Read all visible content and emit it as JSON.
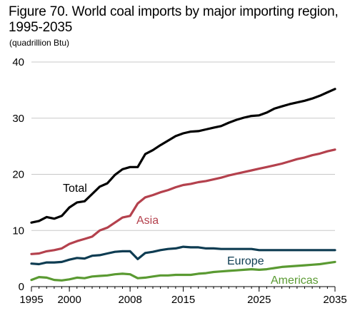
{
  "chart_data": {
    "type": "line",
    "title": "Figure 70. World coal imports by major importing region, 1995-2035",
    "subtitle": "(quadrillion Btu)",
    "xlabel": "",
    "ylabel": "",
    "ylim": [
      0,
      40
    ],
    "xlim": [
      1995,
      2035
    ],
    "y_ticks": [
      "0",
      "10",
      "20",
      "30",
      "40"
    ],
    "x_ticks": [
      {
        "value": 1995,
        "label": "1995"
      },
      {
        "value": 2000,
        "label": "2000"
      },
      {
        "value": 2008,
        "label": "2008"
      },
      {
        "value": 2015,
        "label": "2015"
      },
      {
        "value": 2025,
        "label": "2025"
      },
      {
        "value": 2035,
        "label": "2035"
      }
    ],
    "grid": "horizontal",
    "legend": "inline labels",
    "x": [
      1995,
      1996,
      1997,
      1998,
      1999,
      2000,
      2001,
      2002,
      2003,
      2004,
      2005,
      2006,
      2007,
      2008,
      2009,
      2010,
      2011,
      2012,
      2013,
      2014,
      2015,
      2016,
      2017,
      2018,
      2019,
      2020,
      2021,
      2022,
      2023,
      2024,
      2025,
      2026,
      2027,
      2028,
      2029,
      2030,
      2031,
      2032,
      2033,
      2034,
      2035
    ],
    "series": [
      {
        "name": "Total",
        "color": "#000000",
        "values": [
          11.4,
          11.7,
          12.4,
          12.1,
          12.6,
          14.1,
          15.0,
          15.2,
          16.5,
          17.8,
          18.4,
          19.9,
          20.9,
          21.3,
          21.3,
          23.6,
          24.3,
          25.2,
          26.0,
          26.8,
          27.3,
          27.6,
          27.7,
          28.0,
          28.3,
          28.6,
          29.2,
          29.7,
          30.1,
          30.4,
          30.5,
          31.0,
          31.7,
          32.1,
          32.5,
          32.8,
          33.1,
          33.5,
          34.0,
          34.6,
          35.2
        ]
      },
      {
        "name": "Asia",
        "color": "#b4414d",
        "values": [
          5.8,
          5.9,
          6.3,
          6.5,
          6.8,
          7.6,
          8.1,
          8.5,
          8.9,
          10.0,
          10.5,
          11.4,
          12.3,
          12.6,
          14.8,
          15.9,
          16.3,
          16.8,
          17.2,
          17.7,
          18.1,
          18.3,
          18.6,
          18.8,
          19.1,
          19.4,
          19.8,
          20.1,
          20.4,
          20.7,
          21.0,
          21.3,
          21.6,
          21.9,
          22.3,
          22.7,
          23.0,
          23.4,
          23.7,
          24.1,
          24.4
        ]
      },
      {
        "name": "Europe",
        "color": "#0e3c52",
        "values": [
          4.1,
          4.0,
          4.3,
          4.3,
          4.4,
          4.8,
          5.1,
          5.0,
          5.5,
          5.6,
          5.9,
          6.2,
          6.3,
          6.3,
          4.9,
          6.0,
          6.2,
          6.5,
          6.7,
          6.8,
          7.1,
          7.0,
          7.0,
          6.8,
          6.8,
          6.7,
          6.7,
          6.7,
          6.7,
          6.7,
          6.5,
          6.5,
          6.5,
          6.5,
          6.5,
          6.5,
          6.5,
          6.5,
          6.5,
          6.5,
          6.5
        ]
      },
      {
        "name": "Americas",
        "color": "#5a9a32",
        "values": [
          1.2,
          1.7,
          1.6,
          1.2,
          1.1,
          1.3,
          1.6,
          1.5,
          1.8,
          1.9,
          2.0,
          2.2,
          2.3,
          2.2,
          1.5,
          1.6,
          1.8,
          2.0,
          2.0,
          2.1,
          2.1,
          2.1,
          2.3,
          2.4,
          2.6,
          2.7,
          2.8,
          2.9,
          3.0,
          3.1,
          3.0,
          3.1,
          3.3,
          3.5,
          3.6,
          3.7,
          3.8,
          3.9,
          4.0,
          4.2,
          4.4
        ]
      }
    ]
  }
}
